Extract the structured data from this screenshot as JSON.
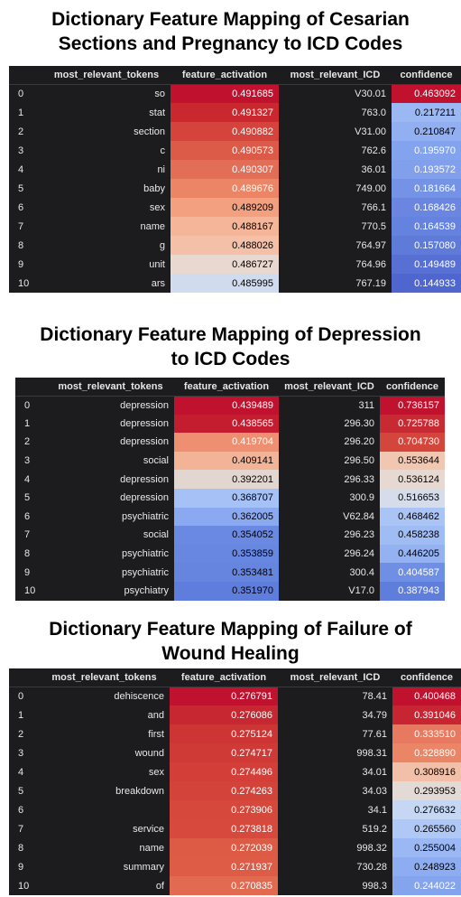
{
  "tables": [
    {
      "title_line1": "Dictionary Feature Mapping of Cesarian",
      "title_line2": "Sections and Pregnancy to ICD Codes",
      "columns": [
        "",
        "most_relevant_tokens",
        "feature_activation",
        "most_relevant_ICD",
        "confidence"
      ],
      "rows": [
        {
          "index": "0",
          "token": "so",
          "activation": "0.491685",
          "icd": "V30.01",
          "confidence": "0.463092",
          "act_color": "#c0122e",
          "act_text": "#ffffff",
          "conf_color": "#c0122e",
          "conf_text": "#ffffff"
        },
        {
          "index": "1",
          "token": "stat",
          "activation": "0.491327",
          "icd": "763.0",
          "confidence": "0.217211",
          "act_color": "#c9282e",
          "act_text": "#ffffff",
          "conf_color": "#9cb8f4",
          "conf_text": "#000000"
        },
        {
          "index": "2",
          "token": "section",
          "activation": "0.490882",
          "icd": "V31.00",
          "confidence": "0.210847",
          "act_color": "#d4433c",
          "act_text": "#ffffff",
          "conf_color": "#92aff2",
          "conf_text": "#000000"
        },
        {
          "index": "3",
          "token": "c",
          "activation": "0.490573",
          "icd": "762.6",
          "confidence": "0.195970",
          "act_color": "#dc5a48",
          "act_text": "#ffffff",
          "conf_color": "#84a3ee",
          "conf_text": "#ffffff"
        },
        {
          "index": "4",
          "token": "ni",
          "activation": "0.490307",
          "icd": "36.01",
          "confidence": "0.193572",
          "act_color": "#e36e57",
          "act_text": "#ffffff",
          "conf_color": "#829feb",
          "conf_text": "#ffffff"
        },
        {
          "index": "5",
          "token": "baby",
          "activation": "0.489676",
          "icd": "749.00",
          "confidence": "0.181664",
          "act_color": "#ec8566",
          "act_text": "#ffffff",
          "conf_color": "#7593e6",
          "conf_text": "#ffffff"
        },
        {
          "index": "6",
          "token": "sex",
          "activation": "0.489209",
          "icd": "766.1",
          "confidence": "0.168426",
          "act_color": "#f2a07f",
          "act_text": "#000000",
          "conf_color": "#6a86e0",
          "conf_text": "#ffffff"
        },
        {
          "index": "7",
          "token": "name",
          "activation": "0.488167",
          "icd": "770.5",
          "confidence": "0.164539",
          "act_color": "#f5b599",
          "act_text": "#000000",
          "conf_color": "#6582de",
          "conf_text": "#ffffff"
        },
        {
          "index": "8",
          "token": "g",
          "activation": "0.488026",
          "icd": "764.97",
          "confidence": "0.157080",
          "act_color": "#f4c1a8",
          "act_text": "#000000",
          "conf_color": "#5f7bd9",
          "conf_text": "#ffffff"
        },
        {
          "index": "9",
          "token": "unit",
          "activation": "0.486727",
          "icd": "764.96",
          "confidence": "0.149489",
          "act_color": "#e8d8d0",
          "act_text": "#000000",
          "conf_color": "#5870d4",
          "conf_text": "#ffffff"
        },
        {
          "index": "10",
          "token": "ars",
          "activation": "0.485995",
          "icd": "767.19",
          "confidence": "0.144933",
          "act_color": "#d0dbee",
          "act_text": "#000000",
          "conf_color": "#4f66cf",
          "conf_text": "#ffffff"
        }
      ]
    },
    {
      "title_line1": "Dictionary Feature Mapping of Depression",
      "title_line2": "to ICD Codes",
      "columns": [
        "",
        "most_relevant_tokens",
        "feature_activation",
        "most_relevant_ICD",
        "confidence"
      ],
      "rows": [
        {
          "index": "0",
          "token": "depression",
          "activation": "0.439489",
          "icd": "311",
          "confidence": "0.736157",
          "act_color": "#c0122e",
          "act_text": "#ffffff",
          "conf_color": "#c0122e",
          "conf_text": "#ffffff"
        },
        {
          "index": "1",
          "token": "depression",
          "activation": "0.438565",
          "icd": "296.30",
          "confidence": "0.725788",
          "act_color": "#c41d2f",
          "act_text": "#ffffff",
          "conf_color": "#c82a33",
          "conf_text": "#ffffff"
        },
        {
          "index": "2",
          "token": "depression",
          "activation": "0.419704",
          "icd": "296.20",
          "confidence": "0.704730",
          "act_color": "#ef8f71",
          "act_text": "#ffffff",
          "conf_color": "#d4453c",
          "conf_text": "#ffffff"
        },
        {
          "index": "3",
          "token": "social",
          "activation": "0.409141",
          "icd": "296.50",
          "confidence": "0.553644",
          "act_color": "#f3b396",
          "act_text": "#000000",
          "conf_color": "#f2c7b1",
          "conf_text": "#000000"
        },
        {
          "index": "4",
          "token": "depression",
          "activation": "0.392201",
          "icd": "296.33",
          "confidence": "0.536124",
          "act_color": "#e2d6d0",
          "act_text": "#000000",
          "conf_color": "#e6d9d2",
          "conf_text": "#000000"
        },
        {
          "index": "5",
          "token": "depression",
          "activation": "0.368707",
          "icd": "300.9",
          "confidence": "0.516653",
          "act_color": "#a6c1f6",
          "act_text": "#000000",
          "conf_color": "#d7dcea",
          "conf_text": "#000000"
        },
        {
          "index": "6",
          "token": "psychiatric",
          "activation": "0.362005",
          "icd": "V62.84",
          "confidence": "0.468462",
          "act_color": "#8ba9f0",
          "act_text": "#000000",
          "conf_color": "#aac4f5",
          "conf_text": "#000000"
        },
        {
          "index": "7",
          "token": "social",
          "activation": "0.354052",
          "icd": "296.23",
          "confidence": "0.458238",
          "act_color": "#6a89e2",
          "act_text": "#000000",
          "conf_color": "#a0bcf4",
          "conf_text": "#000000"
        },
        {
          "index": "8",
          "token": "psychiatric",
          "activation": "0.353859",
          "icd": "296.24",
          "confidence": "0.446205",
          "act_color": "#6887e1",
          "act_text": "#000000",
          "conf_color": "#94b2f1",
          "conf_text": "#000000"
        },
        {
          "index": "9",
          "token": "psychiatric",
          "activation": "0.353481",
          "icd": "300.4",
          "confidence": "0.404587",
          "act_color": "#6685df",
          "act_text": "#000000",
          "conf_color": "#6f8fe4",
          "conf_text": "#ffffff"
        },
        {
          "index": "10",
          "token": "psychiatry",
          "activation": "0.351970",
          "icd": "V17.0",
          "confidence": "0.387943",
          "act_color": "#5f7ddc",
          "act_text": "#000000",
          "conf_color": "#5f7edb",
          "conf_text": "#ffffff"
        }
      ]
    },
    {
      "title_line1": "Dictionary Feature Mapping of Failure of",
      "title_line2": "Wound Healing",
      "columns": [
        "",
        "most_relevant_tokens",
        "feature_activation",
        "most_relevant_ICD",
        "confidence"
      ],
      "rows": [
        {
          "index": "0",
          "token": "dehiscence",
          "activation": "0.276791",
          "icd": "78.41",
          "confidence": "0.400468",
          "act_color": "#c0122e",
          "act_text": "#ffffff",
          "conf_color": "#c0122e",
          "conf_text": "#ffffff"
        },
        {
          "index": "1",
          "token": "and",
          "activation": "0.276086",
          "icd": "34.79",
          "confidence": "0.391046",
          "act_color": "#c62730",
          "act_text": "#ffffff",
          "conf_color": "#c82532",
          "conf_text": "#ffffff"
        },
        {
          "index": "2",
          "token": "first",
          "activation": "0.275124",
          "icd": "77.61",
          "confidence": "0.333510",
          "act_color": "#cd3534",
          "act_text": "#ffffff",
          "conf_color": "#e6795f",
          "conf_text": "#ffffff"
        },
        {
          "index": "3",
          "token": "wound",
          "activation": "0.274717",
          "icd": "998.31",
          "confidence": "0.328890",
          "act_color": "#d03a36",
          "act_text": "#ffffff",
          "conf_color": "#ea8566",
          "conf_text": "#ffffff"
        },
        {
          "index": "4",
          "token": "sex",
          "activation": "0.274496",
          "icd": "34.01",
          "confidence": "0.308916",
          "act_color": "#d33f38",
          "act_text": "#ffffff",
          "conf_color": "#f2c0a8",
          "conf_text": "#000000"
        },
        {
          "index": "5",
          "token": "breakdown",
          "activation": "0.274263",
          "icd": "34.03",
          "confidence": "0.293953",
          "act_color": "#d4433a",
          "act_text": "#ffffff",
          "conf_color": "#e3dad5",
          "conf_text": "#000000"
        },
        {
          "index": "6",
          "token": "",
          "activation": "0.273906",
          "icd": "34.1",
          "confidence": "0.276632",
          "act_color": "#d6483b",
          "act_text": "#ffffff",
          "conf_color": "#c6d7f3",
          "conf_text": "#000000"
        },
        {
          "index": "7",
          "token": "service",
          "activation": "0.273818",
          "icd": "519.2",
          "confidence": "0.265560",
          "act_color": "#d7493c",
          "act_text": "#ffffff",
          "conf_color": "#b0c8f6",
          "conf_text": "#000000"
        },
        {
          "index": "8",
          "token": "name",
          "activation": "0.272039",
          "icd": "998.32",
          "confidence": "0.255004",
          "act_color": "#dd5a45",
          "act_text": "#ffffff",
          "conf_color": "#9bb8f4",
          "conf_text": "#000000"
        },
        {
          "index": "9",
          "token": "summary",
          "activation": "0.271937",
          "icd": "730.28",
          "confidence": "0.248923",
          "act_color": "#de5c46",
          "act_text": "#ffffff",
          "conf_color": "#8eacf1",
          "conf_text": "#000000"
        },
        {
          "index": "10",
          "token": "of",
          "activation": "0.270835",
          "icd": "998.3",
          "confidence": "0.244022",
          "act_color": "#e26a51",
          "act_text": "#ffffff",
          "conf_color": "#85a4ee",
          "conf_text": "#ffffff"
        }
      ]
    }
  ]
}
